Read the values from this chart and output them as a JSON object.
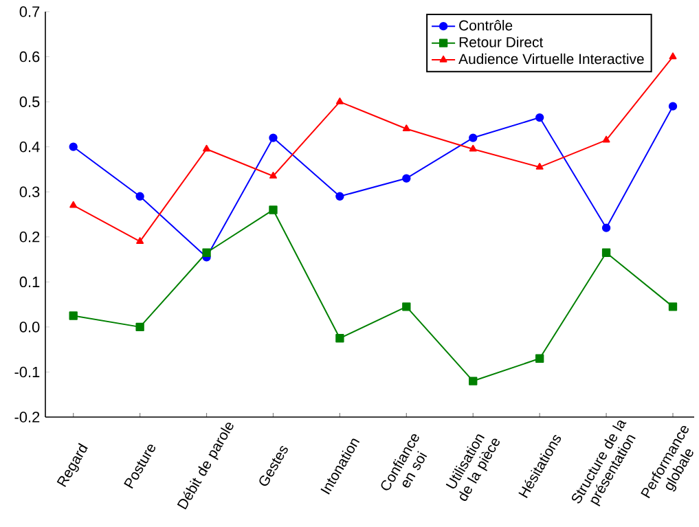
{
  "chart_data": {
    "type": "line",
    "categories": [
      "Regard",
      "Posture",
      "Débit de parole",
      "Gestes",
      "Intonation",
      "Confiance en soi",
      "Utilisation de la pièce",
      "Hésitations",
      "Structure de la présentation",
      "Performance globale"
    ],
    "series": [
      {
        "name": "Contrôle",
        "color": "#0000ff",
        "marker": "circle",
        "values": [
          0.4,
          0.29,
          0.155,
          0.42,
          0.29,
          0.33,
          0.42,
          0.465,
          0.22,
          0.49
        ]
      },
      {
        "name": "Retour Direct",
        "color": "#008000",
        "marker": "square",
        "values": [
          0.025,
          0.0,
          0.165,
          0.26,
          -0.025,
          0.045,
          -0.12,
          -0.07,
          0.165,
          0.045
        ]
      },
      {
        "name": "Audience Virtuelle Interactive",
        "color": "#ff0000",
        "marker": "triangle",
        "values": [
          0.27,
          0.19,
          0.395,
          0.335,
          0.5,
          0.44,
          0.395,
          0.355,
          0.415,
          0.6
        ]
      }
    ],
    "ylim": [
      -0.2,
      0.7
    ],
    "yticks": [
      -0.2,
      -0.1,
      {
        "value": 0,
        "label": "0.0"
      },
      0.1,
      0.2,
      0.3,
      0.4,
      0.5,
      0.6,
      0.7
    ],
    "grid": false,
    "legend": "top right",
    "line_style": "solid"
  }
}
